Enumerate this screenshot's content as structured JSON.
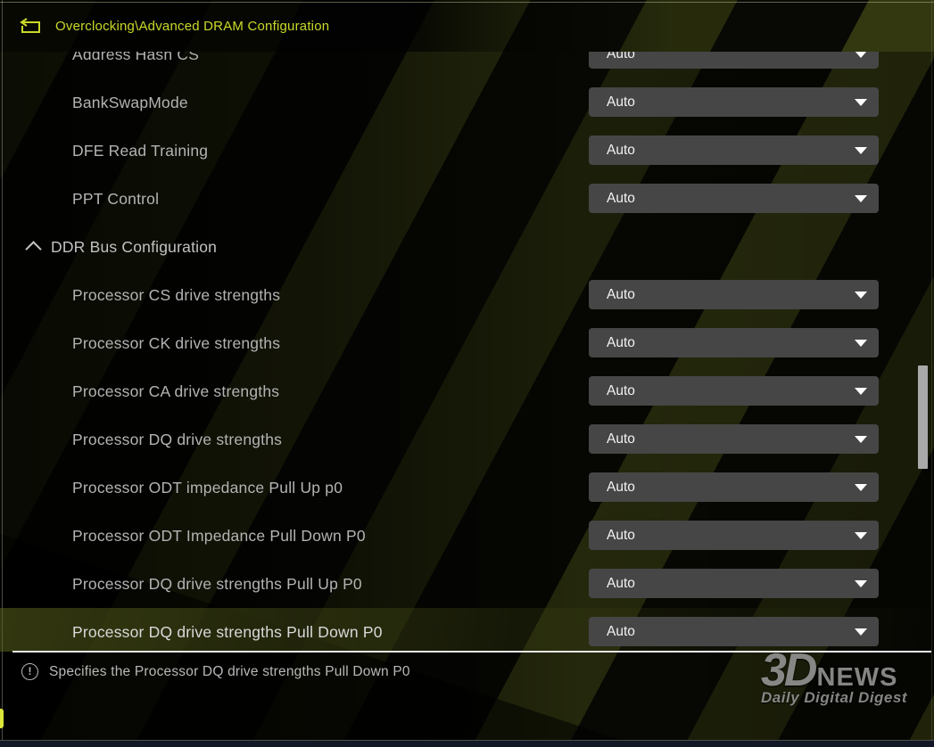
{
  "header": {
    "breadcrumb": "Overclocking\\Advanced DRAM Configuration"
  },
  "settings": {
    "rows": [
      {
        "label": "Address Hash CS",
        "value": "Auto",
        "type": "option",
        "clipped_top": true
      },
      {
        "label": "BankSwapMode",
        "value": "Auto",
        "type": "option"
      },
      {
        "label": "DFE Read Training",
        "value": "Auto",
        "type": "option"
      },
      {
        "label": "PPT Control",
        "value": "Auto",
        "type": "option"
      },
      {
        "label": "DDR Bus Configuration",
        "type": "section",
        "expanded": true
      },
      {
        "label": "Processor CS drive strengths",
        "value": "Auto",
        "type": "option"
      },
      {
        "label": "Processor CK drive strengths",
        "value": "Auto",
        "type": "option"
      },
      {
        "label": "Processor CA drive strengths",
        "value": "Auto",
        "type": "option"
      },
      {
        "label": "Processor DQ drive strengths",
        "value": "Auto",
        "type": "option"
      },
      {
        "label": "Processor ODT impedance Pull Up p0",
        "value": "Auto",
        "type": "option"
      },
      {
        "label": "Processor ODT Impedance Pull Down P0",
        "value": "Auto",
        "type": "option"
      },
      {
        "label": "Processor DQ drive strengths Pull Up P0",
        "value": "Auto",
        "type": "option"
      },
      {
        "label": "Processor DQ drive strengths Pull Down P0",
        "value": "Auto",
        "type": "option",
        "selected": true
      }
    ]
  },
  "help": {
    "text": "Specifies the Processor DQ drive strengths Pull Down P0"
  },
  "watermark": {
    "big": "3D",
    "news": "NEWS",
    "tagline": "Daily Digital Digest"
  },
  "icons": {
    "back": "back-return-arrow",
    "section_collapse": "chevron-up",
    "dropdown": "triangle-down",
    "help": "exclamation-circle"
  },
  "colors": {
    "accent": "#c9d929",
    "label": "#b3b3b3",
    "dropdown_bg": "#464646",
    "dropdown_text": "#f2f2f2",
    "selected_underline": "#e9e9e9",
    "pattern_olive": "#3a4013",
    "bottom_bar": "#131826"
  }
}
